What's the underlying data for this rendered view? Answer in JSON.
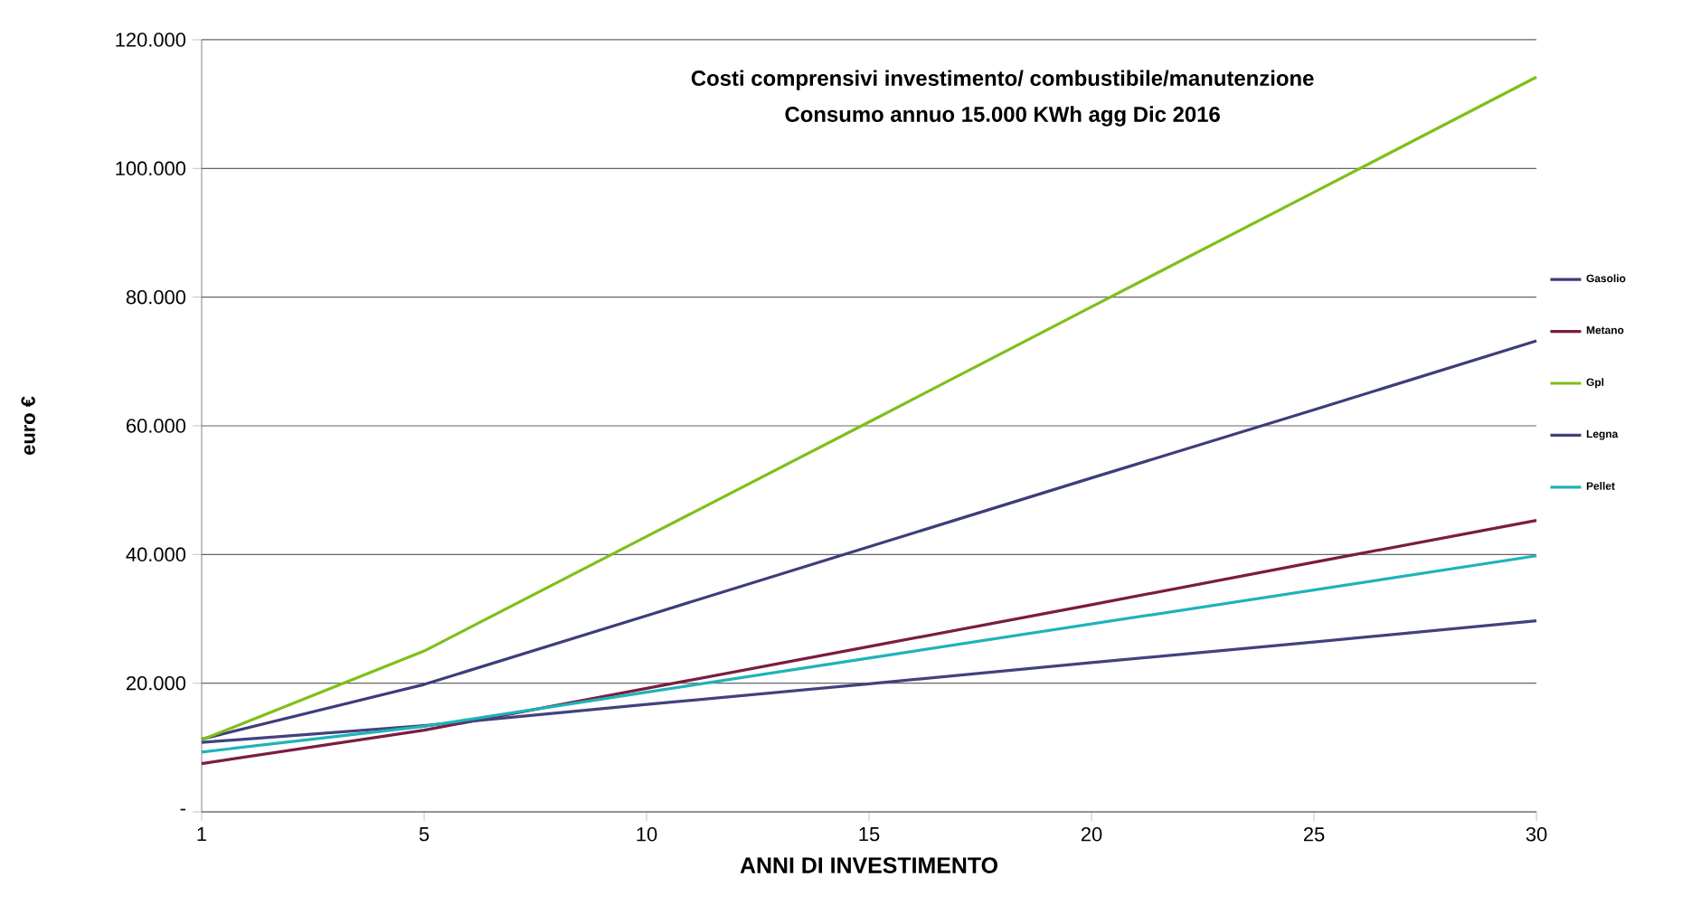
{
  "chart_data": {
    "type": "line",
    "title": "Costi comprensivi investimento/ combustibile/manutenzione",
    "subtitle": "Consumo annuo 15.000 KWh agg Dic 2016",
    "xlabel": "ANNI DI INVESTIMENTO",
    "ylabel": "euro  €",
    "categories": [
      "1",
      "5",
      "10",
      "15",
      "20",
      "25",
      "30"
    ],
    "series": [
      {
        "name": "Gasolio",
        "color": "#3d3d7c",
        "values": [
          11300,
          19800,
          30500,
          41200,
          51900,
          62500,
          73200
        ]
      },
      {
        "name": "Metano",
        "color": "#7b1c40",
        "values": [
          7500,
          12700,
          19200,
          25700,
          32200,
          38800,
          45300
        ]
      },
      {
        "name": "Gpl",
        "color": "#7fbf1a",
        "values": [
          11200,
          25000,
          42800,
          60600,
          78500,
          96300,
          114200
        ]
      },
      {
        "name": "Legna",
        "color": "#42427e",
        "values": [
          10800,
          13400,
          16700,
          19900,
          23200,
          26400,
          29700
        ]
      },
      {
        "name": "Pellet",
        "color": "#1fb3b8",
        "values": [
          9300,
          13300,
          18600,
          23900,
          29200,
          34500,
          39800
        ]
      }
    ],
    "ylim": [
      0,
      120000
    ],
    "yticks": [
      {
        "value": 0,
        "label": "-"
      },
      {
        "value": 20000,
        "label": "20.000"
      },
      {
        "value": 40000,
        "label": "40.000"
      },
      {
        "value": 60000,
        "label": "60.000"
      },
      {
        "value": 80000,
        "label": "80.000"
      },
      {
        "value": 100000,
        "label": "100.000"
      },
      {
        "value": 120000,
        "label": "120.000"
      }
    ],
    "grid": "y",
    "legend": "right",
    "marker": "none",
    "line_style": "solid"
  }
}
